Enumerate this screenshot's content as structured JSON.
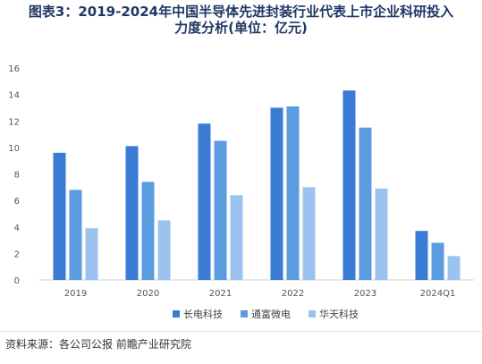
{
  "title_line1": "图表3：2019-2024年中国半导体先进封装行业代表上市企业科研投入",
  "title_line2": "力度分析(单位：亿元)",
  "source": "资料来源：各公司公报 前瞻产业研究院",
  "colors": {
    "title": "#1f3864",
    "series": [
      "#3a7bd5",
      "#5b9be0",
      "#9cc3ef"
    ]
  },
  "chart_data": {
    "type": "bar",
    "categories": [
      "2019",
      "2020",
      "2021",
      "2022",
      "2023",
      "2024Q1"
    ],
    "series": [
      {
        "name": "长电科技",
        "values": [
          9.6,
          10.1,
          11.8,
          13.0,
          14.3,
          3.7
        ]
      },
      {
        "name": "通富微电",
        "values": [
          6.8,
          7.4,
          10.5,
          13.1,
          11.5,
          2.8
        ]
      },
      {
        "name": "华天科技",
        "values": [
          3.9,
          4.5,
          6.4,
          7.0,
          6.9,
          1.8
        ]
      }
    ],
    "ylim": [
      0,
      16
    ],
    "yticks": [
      0,
      2,
      4,
      6,
      8,
      10,
      12,
      14,
      16
    ],
    "grid": false,
    "legend": "bottom"
  }
}
